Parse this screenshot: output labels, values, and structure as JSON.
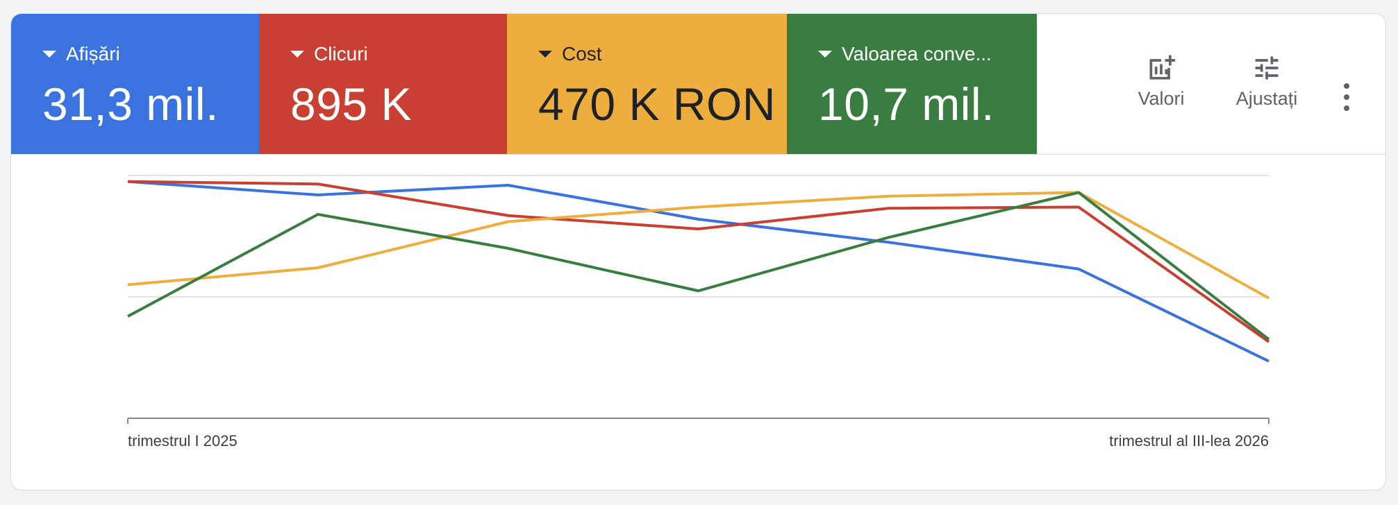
{
  "metrics": [
    {
      "label": "Afișări",
      "value": "31,3 mil.",
      "color": "#3a73e0"
    },
    {
      "label": "Clicuri",
      "value": "895 K",
      "color": "#c94032"
    },
    {
      "label": "Cost",
      "value": "470 K RON",
      "color": "#edae3d"
    },
    {
      "label": "Valoarea conve...",
      "value": "10,7 mil.",
      "color": "#3a7d42"
    }
  ],
  "toolbar": {
    "valori_label": "Valori",
    "ajustati_label": "Ajustați",
    "more_icon": "more-vert-icon",
    "valori_icon": "add-chart-icon",
    "ajustati_icon": "tune-icon"
  },
  "chart_data": {
    "type": "line",
    "x_start_label": "trimestrul I 2025",
    "x_end_label": "trimestrul al III-lea 2026",
    "x": [
      "trimestrul I 2025",
      "",
      "",
      "",
      "",
      "",
      "trimestrul al III-lea 2026"
    ],
    "ylim": [
      0,
      1
    ],
    "grid": true,
    "series": [
      {
        "color": "#3a73e0",
        "values": [
          0.975,
          0.92,
          0.96,
          0.82,
          0.725,
          0.615,
          0.235
        ]
      },
      {
        "color": "#c94032",
        "values": [
          0.975,
          0.965,
          0.835,
          0.78,
          0.865,
          0.87,
          0.315
        ]
      },
      {
        "color": "#edae3d",
        "values": [
          0.55,
          0.62,
          0.81,
          0.87,
          0.915,
          0.93,
          0.495
        ]
      },
      {
        "color": "#3a7d42",
        "values": [
          0.42,
          0.84,
          0.7,
          0.525,
          0.745,
          0.93,
          0.325
        ]
      }
    ]
  }
}
